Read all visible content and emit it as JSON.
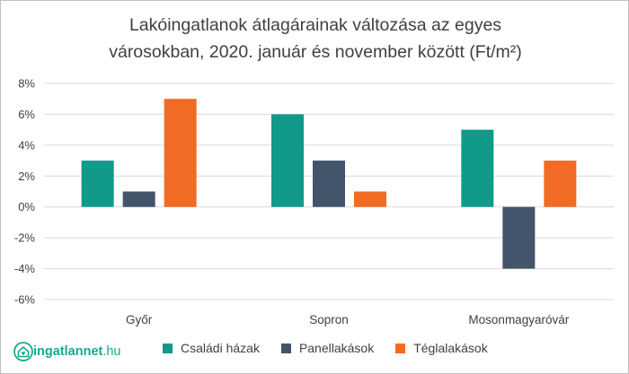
{
  "title_lines": [
    "Lakóingatlanok átlagárainak változása az egyes",
    "városokban, 2020. január és november között (Ft/m²)"
  ],
  "logo": {
    "name": "ingatlannet",
    "tld": ".hu",
    "color": "#19a88f"
  },
  "chart_data": {
    "type": "bar",
    "title": "Lakóingatlanok átlagárainak változása az egyes városokban, 2020. január és november között (Ft/m²)",
    "categories": [
      "Győr",
      "Sopron",
      "Mosonmagyaróvár"
    ],
    "series": [
      {
        "name": "Családi házak",
        "color": "#11998a",
        "values": [
          3,
          6,
          5
        ]
      },
      {
        "name": "Panellakások",
        "color": "#44546a",
        "values": [
          1,
          3,
          -4
        ]
      },
      {
        "name": "Téglalakások",
        "color": "#f16b25",
        "values": [
          7,
          1,
          3
        ]
      }
    ],
    "yticks": [
      "8%",
      "6%",
      "4%",
      "2%",
      "0%",
      "-2%",
      "-4%",
      "-6%"
    ],
    "ylim": [
      -6,
      8
    ],
    "unit": "%",
    "grid": true,
    "legend": "bottom"
  }
}
